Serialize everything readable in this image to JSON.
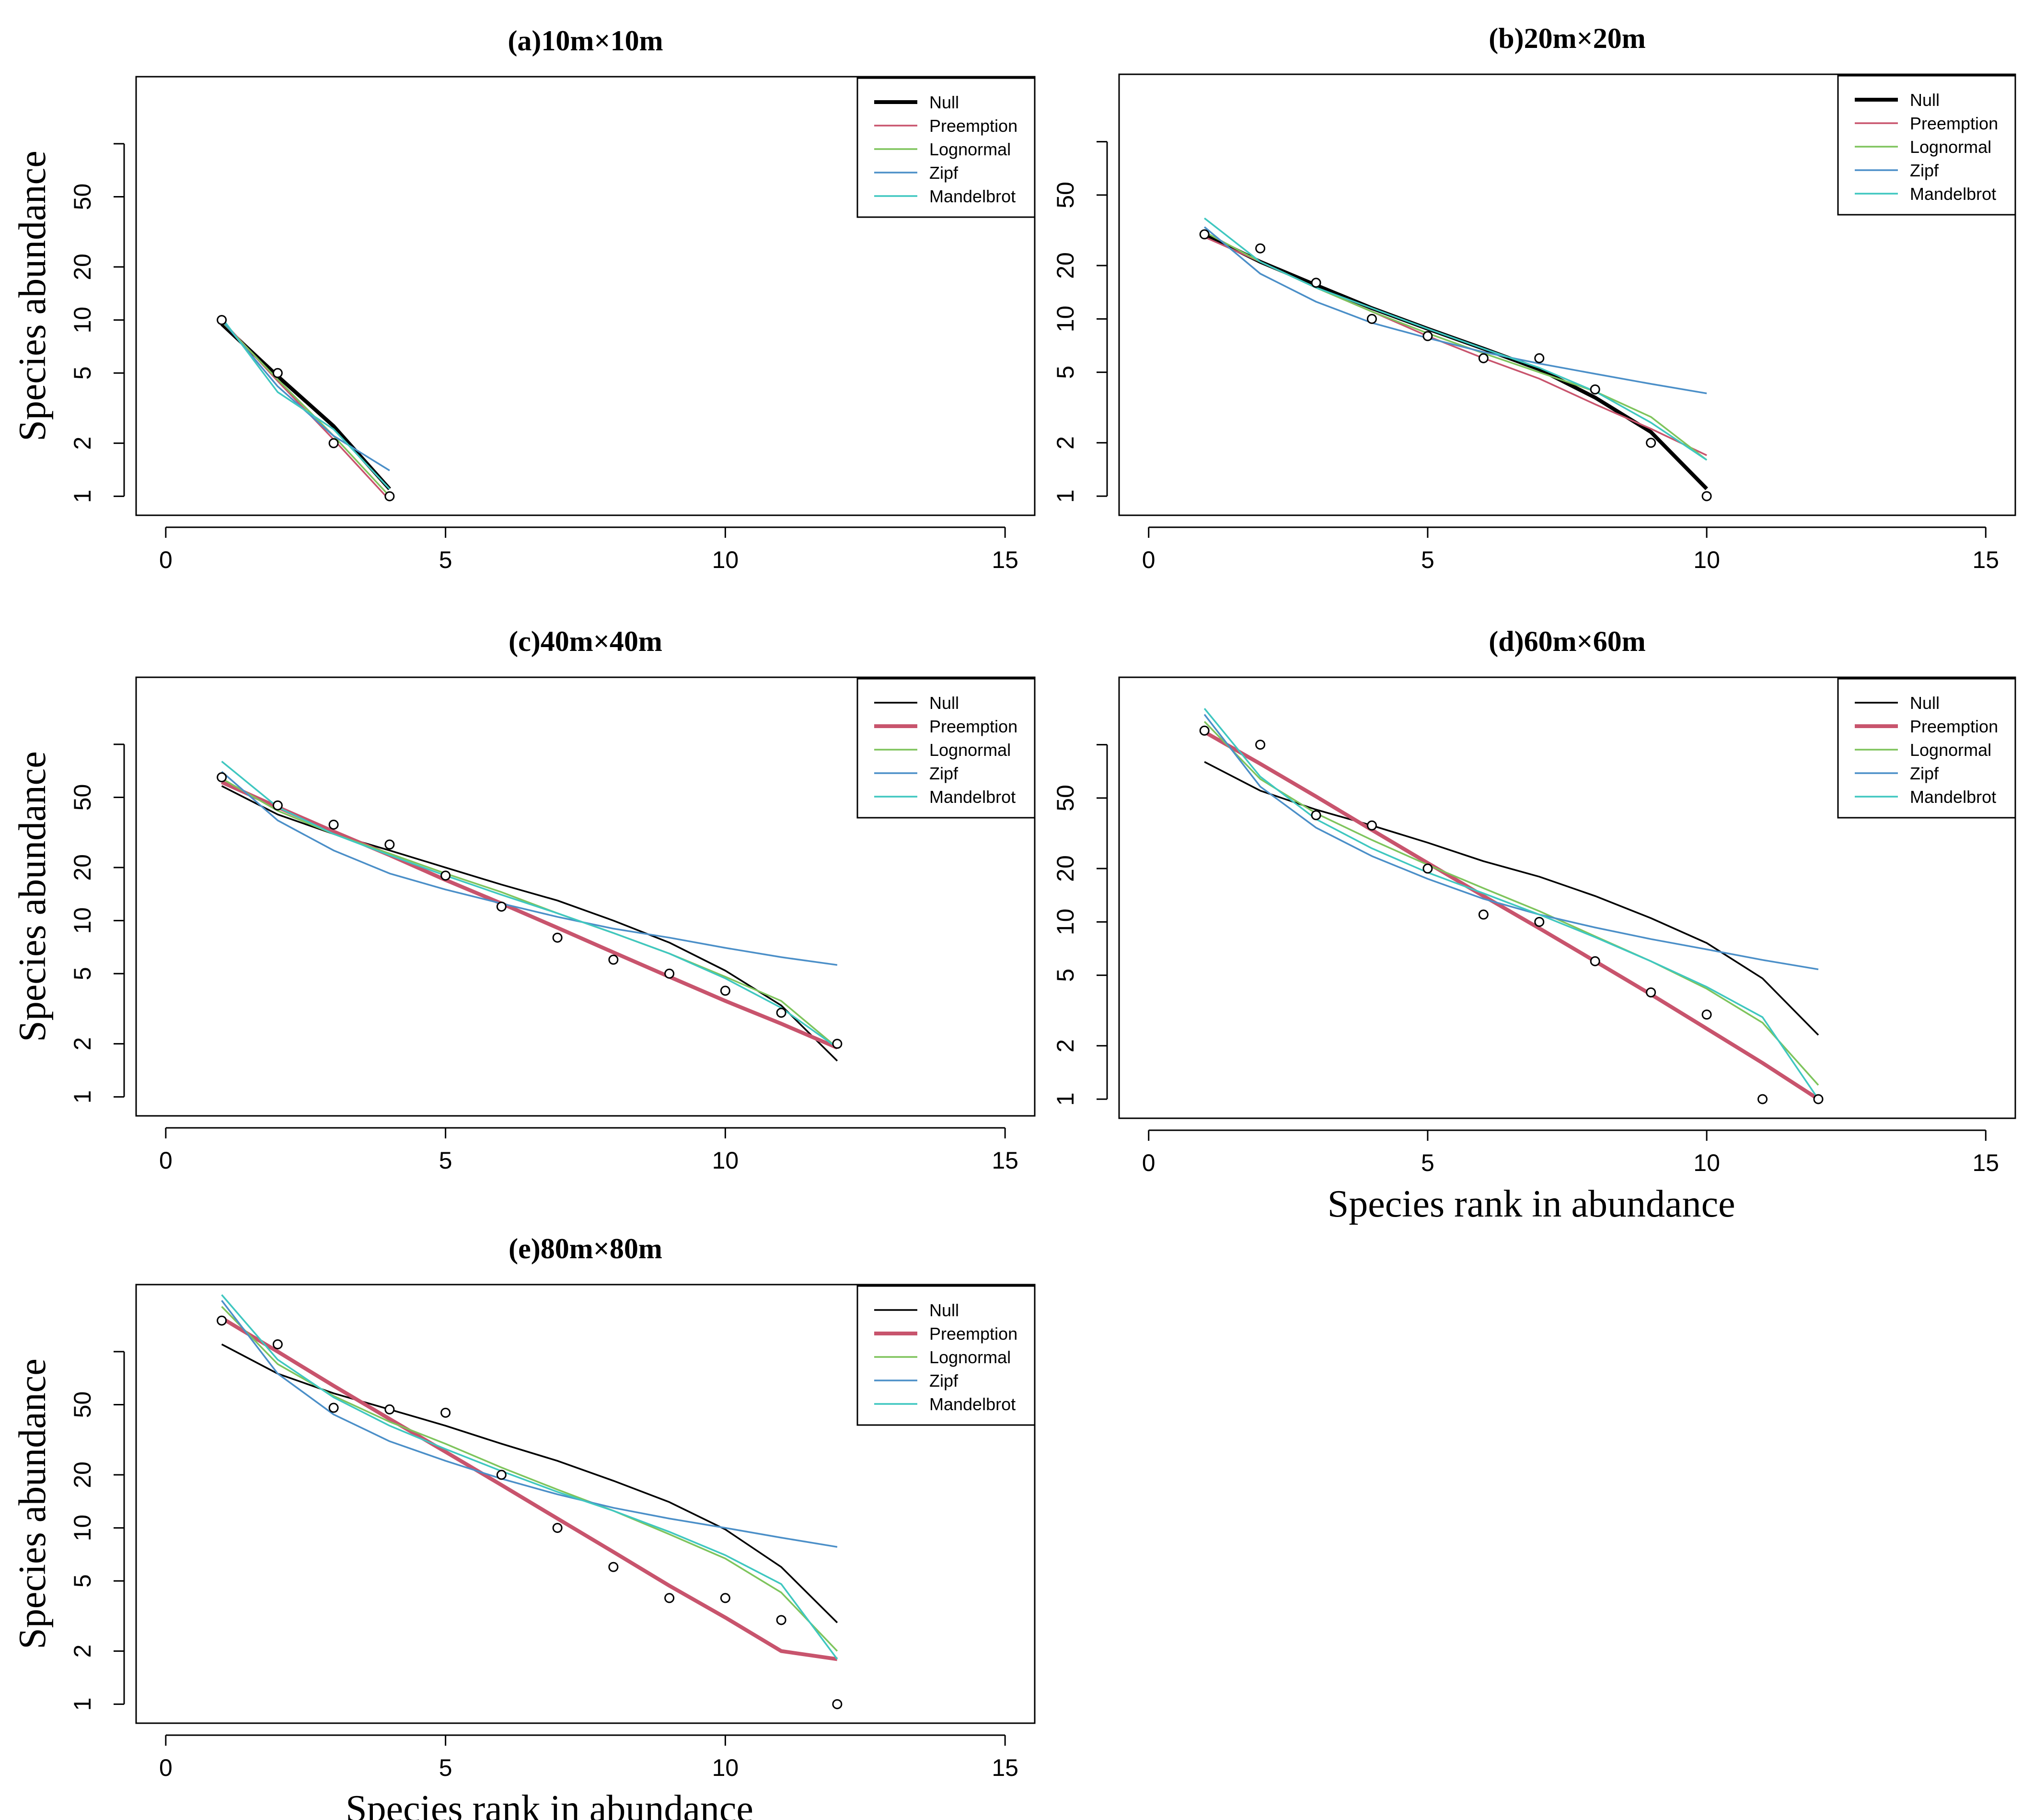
{
  "legend_labels": [
    "Null",
    "Preemption",
    "Lognormal",
    "Zipf",
    "Mandelbrot"
  ],
  "series_colors": {
    "Null": "#000000",
    "Preemption": "#c8546d",
    "Lognormal": "#7ec45c",
    "Zipf": "#4b8fc8",
    "Mandelbrot": "#3fc7c0"
  },
  "chart_data": [
    {
      "type": "line",
      "title": "(a)10m×10m",
      "xlabel": "",
      "ylabel": "Species abundance",
      "xlim": [
        0,
        15
      ],
      "ylog": true,
      "x_ticks": [
        "0",
        "5",
        "10",
        "15"
      ],
      "y_ticks": [
        "1",
        "2",
        "5",
        "10",
        "20",
        "50"
      ],
      "highlight": "Null",
      "observed": {
        "x": [
          1,
          2,
          3,
          4
        ],
        "y": [
          10,
          5,
          2,
          1
        ]
      },
      "series": [
        {
          "name": "Null",
          "x": [
            1,
            2,
            3,
            4
          ],
          "values": [
            9.5,
            4.8,
            2.5,
            1.1
          ]
        },
        {
          "name": "Preemption",
          "x": [
            1,
            2,
            3,
            4
          ],
          "values": [
            10,
            4.5,
            2.1,
            0.95
          ]
        },
        {
          "name": "Lognormal",
          "x": [
            1,
            2,
            3,
            4
          ],
          "values": [
            9.8,
            4.6,
            2.2,
            1.0
          ]
        },
        {
          "name": "Zipf",
          "x": [
            1,
            2,
            3,
            4
          ],
          "values": [
            10,
            4.2,
            2.2,
            1.4
          ]
        },
        {
          "name": "Mandelbrot",
          "x": [
            1,
            2,
            3,
            4
          ],
          "values": [
            10.3,
            3.9,
            2.4,
            1.1
          ]
        }
      ]
    },
    {
      "type": "line",
      "title": "(b)20m×20m",
      "xlabel": "",
      "ylabel": "",
      "xlim": [
        0,
        15
      ],
      "ylog": true,
      "x_ticks": [
        "0",
        "5",
        "10",
        "15"
      ],
      "y_ticks": [
        "1",
        "2",
        "5",
        "10",
        "20",
        "50"
      ],
      "highlight": "Null",
      "observed": {
        "x": [
          1,
          2,
          3,
          4,
          5,
          6,
          7,
          8,
          9,
          10
        ],
        "y": [
          30,
          25,
          16,
          10,
          8,
          6,
          6,
          4,
          2,
          1
        ]
      },
      "series": [
        {
          "name": "Null",
          "x": [
            1,
            2,
            3,
            4,
            5,
            6,
            7,
            8,
            9,
            10
          ],
          "values": [
            30,
            21,
            15.5,
            11.5,
            8.8,
            6.8,
            5.2,
            3.6,
            2.3,
            1.1
          ]
        },
        {
          "name": "Preemption",
          "x": [
            1,
            2,
            3,
            4,
            5,
            6,
            7,
            8,
            9,
            10
          ],
          "values": [
            29,
            21,
            15,
            11,
            8,
            6,
            4.6,
            3.3,
            2.4,
            1.7
          ]
        },
        {
          "name": "Lognormal",
          "x": [
            1,
            2,
            3,
            4,
            5,
            6,
            7,
            8,
            9,
            10
          ],
          "values": [
            31,
            21,
            15,
            11,
            8.3,
            6.4,
            5,
            3.9,
            2.8,
            1.6
          ]
        },
        {
          "name": "Zipf",
          "x": [
            1,
            2,
            3,
            4,
            5,
            6,
            7,
            8,
            9,
            10
          ],
          "values": [
            33,
            18,
            12.5,
            9.5,
            7.8,
            6.5,
            5.6,
            4.9,
            4.3,
            3.8
          ]
        },
        {
          "name": "Mandelbrot",
          "x": [
            1,
            2,
            3,
            4,
            5,
            6,
            7,
            8,
            9,
            10
          ],
          "values": [
            37,
            21,
            15,
            11.5,
            8.8,
            6.8,
            5.3,
            3.9,
            2.6,
            1.6
          ]
        }
      ]
    },
    {
      "type": "line",
      "title": "(c)40m×40m",
      "xlabel": "",
      "ylabel": "Species abundance",
      "xlim": [
        0,
        15
      ],
      "ylog": true,
      "x_ticks": [
        "0",
        "5",
        "10",
        "15"
      ],
      "y_ticks": [
        "1",
        "2",
        "5",
        "10",
        "20",
        "50"
      ],
      "highlight": "Preemption",
      "observed": {
        "x": [
          1,
          2,
          3,
          4,
          5,
          6,
          7,
          8,
          9,
          10,
          11,
          12
        ],
        "y": [
          65,
          45,
          35,
          27,
          18,
          12,
          8,
          6,
          5,
          4,
          3,
          2
        ]
      },
      "series": [
        {
          "name": "Null",
          "x": [
            1,
            2,
            3,
            4,
            5,
            6,
            7,
            8,
            9,
            10,
            11,
            12
          ],
          "values": [
            58,
            40,
            31,
            25,
            20,
            16,
            13,
            10,
            7.5,
            5.2,
            3.3,
            1.6
          ]
        },
        {
          "name": "Preemption",
          "x": [
            1,
            2,
            3,
            4,
            5,
            6,
            7,
            8,
            9,
            10,
            11,
            12
          ],
          "values": [
            61,
            44,
            32,
            23.5,
            17,
            12.5,
            9.1,
            6.6,
            4.8,
            3.5,
            2.6,
            1.9
          ]
        },
        {
          "name": "Lognormal",
          "x": [
            1,
            2,
            3,
            4,
            5,
            6,
            7,
            8,
            9,
            10,
            11,
            12
          ],
          "values": [
            64,
            42,
            31,
            24,
            18.5,
            14.5,
            11,
            8.5,
            6.5,
            4.8,
            3.5,
            1.9
          ]
        },
        {
          "name": "Zipf",
          "x": [
            1,
            2,
            3,
            4,
            5,
            6,
            7,
            8,
            9,
            10,
            11,
            12
          ],
          "values": [
            70,
            37,
            25,
            18.5,
            15,
            12.5,
            10.5,
            9,
            8,
            7,
            6.2,
            5.6
          ]
        },
        {
          "name": "Mandelbrot",
          "x": [
            1,
            2,
            3,
            4,
            5,
            6,
            7,
            8,
            9,
            10,
            11,
            12
          ],
          "values": [
            80,
            44,
            31,
            23.5,
            18,
            14,
            11,
            8.5,
            6.5,
            4.7,
            3.2,
            1.9
          ]
        }
      ]
    },
    {
      "type": "line",
      "title": "(d)60m×60m",
      "xlabel": "Species rank in abundance",
      "ylabel": "",
      "xlim": [
        0,
        15
      ],
      "ylog": true,
      "x_ticks": [
        "0",
        "5",
        "10",
        "15"
      ],
      "y_ticks": [
        "1",
        "2",
        "5",
        "10",
        "20",
        "50"
      ],
      "highlight": "Preemption",
      "observed": {
        "x": [
          1,
          2,
          3,
          4,
          5,
          6,
          7,
          8,
          9,
          10,
          11,
          12
        ],
        "y": [
          120,
          100,
          40,
          35,
          20,
          11,
          10,
          6,
          4,
          3,
          1,
          1
        ]
      },
      "series": [
        {
          "name": "Null",
          "x": [
            1,
            2,
            3,
            4,
            5,
            6,
            7,
            8,
            9,
            10,
            11,
            12
          ],
          "values": [
            80,
            55,
            43,
            35,
            28,
            22,
            18,
            14,
            10.5,
            7.6,
            4.8,
            2.3
          ]
        },
        {
          "name": "Preemption",
          "x": [
            1,
            2,
            3,
            4,
            5,
            6,
            7,
            8,
            9,
            10,
            11,
            12
          ],
          "values": [
            118,
            78,
            51,
            33,
            21.5,
            14,
            9.2,
            6,
            3.9,
            2.5,
            1.6,
            1.0
          ]
        },
        {
          "name": "Lognormal",
          "x": [
            1,
            2,
            3,
            4,
            5,
            6,
            7,
            8,
            9,
            10,
            11,
            12
          ],
          "values": [
            135,
            64,
            41,
            29,
            21,
            15.5,
            11.5,
            8.3,
            6,
            4.2,
            2.7,
            1.2
          ]
        },
        {
          "name": "Zipf",
          "x": [
            1,
            2,
            3,
            4,
            5,
            6,
            7,
            8,
            9,
            10,
            11,
            12
          ],
          "values": [
            148,
            58,
            34,
            23.5,
            17.5,
            13.5,
            11,
            9.3,
            8,
            7,
            6.1,
            5.4
          ]
        },
        {
          "name": "Mandelbrot",
          "x": [
            1,
            2,
            3,
            4,
            5,
            6,
            7,
            8,
            9,
            10,
            11,
            12
          ],
          "values": [
            160,
            66,
            38,
            26,
            19,
            14.5,
            11,
            8.2,
            6,
            4.3,
            2.9,
            1.0
          ]
        }
      ]
    },
    {
      "type": "line",
      "title": "(e)80m×80m",
      "xlabel": "Species rank in abundance",
      "ylabel": "Species abundance",
      "xlim": [
        0,
        15
      ],
      "ylog": true,
      "x_ticks": [
        "0",
        "5",
        "10",
        "15"
      ],
      "y_ticks": [
        "1",
        "2",
        "5",
        "10",
        "20",
        "50"
      ],
      "highlight": "Preemption",
      "observed": {
        "x": [
          1,
          2,
          3,
          4,
          5,
          6,
          7,
          8,
          9,
          10,
          11,
          12
        ],
        "y": [
          150,
          110,
          48,
          47,
          45,
          20,
          10,
          6,
          4,
          4,
          3,
          1
        ]
      },
      "series": [
        {
          "name": "Null",
          "x": [
            1,
            2,
            3,
            4,
            5,
            6,
            7,
            8,
            9,
            10,
            11,
            12
          ],
          "values": [
            110,
            75,
            58,
            47,
            38,
            30,
            24,
            18.5,
            14,
            9.8,
            6,
            2.9
          ]
        },
        {
          "name": "Preemption",
          "x": [
            1,
            2,
            3,
            4,
            5,
            6,
            7,
            8,
            9,
            10,
            11,
            12
          ],
          "values": [
            155,
            100,
            64,
            41.5,
            27,
            17.5,
            11.3,
            7.3,
            4.7,
            3.1,
            2.0,
            1.8
          ]
        },
        {
          "name": "Lognormal",
          "x": [
            1,
            2,
            3,
            4,
            5,
            6,
            7,
            8,
            9,
            10,
            11,
            12
          ],
          "values": [
            180,
            85,
            56,
            40,
            30,
            22,
            16.5,
            12.5,
            9.2,
            6.7,
            4.3,
            2.0
          ]
        },
        {
          "name": "Zipf",
          "x": [
            1,
            2,
            3,
            4,
            5,
            6,
            7,
            8,
            9,
            10,
            11,
            12
          ],
          "values": [
            195,
            75,
            44,
            31,
            24,
            19,
            15.5,
            13,
            11.3,
            10,
            8.8,
            7.8
          ]
        },
        {
          "name": "Mandelbrot",
          "x": [
            1,
            2,
            3,
            4,
            5,
            6,
            7,
            8,
            9,
            10,
            11,
            12
          ],
          "values": [
            210,
            90,
            55,
            38,
            28,
            21,
            16,
            12.5,
            9.5,
            7,
            4.8,
            1.8
          ]
        }
      ]
    }
  ]
}
